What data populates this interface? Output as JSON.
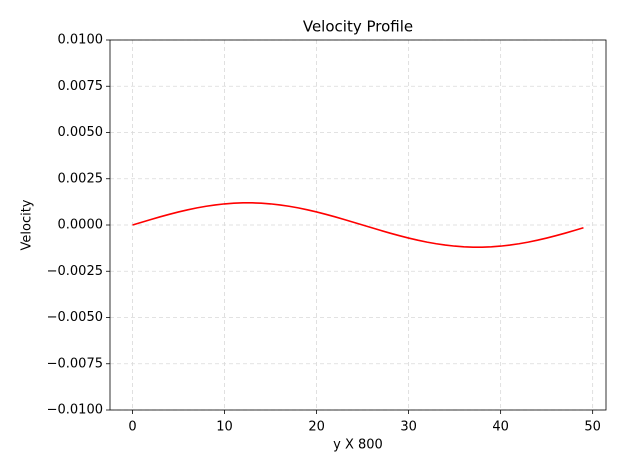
{
  "chart_data": {
    "type": "line",
    "title": "Velocity Profile",
    "x_label": "y X 800",
    "y_label": "Velocity",
    "x": [
      0,
      1,
      2,
      3,
      4,
      5,
      6,
      7,
      8,
      9,
      10,
      11,
      12,
      13,
      14,
      15,
      16,
      17,
      18,
      19,
      20,
      21,
      22,
      23,
      24,
      25,
      26,
      27,
      28,
      29,
      30,
      31,
      32,
      33,
      34,
      35,
      36,
      37,
      38,
      39,
      40,
      41,
      42,
      43,
      44,
      45,
      46,
      47,
      48,
      49
    ],
    "series": [
      {
        "name": "Velocity",
        "color": "#ff0000",
        "values": [
          0,
          0.00015,
          0.000298,
          0.000442,
          0.000578,
          0.000705,
          0.000821,
          0.000925,
          0.001013,
          0.001086,
          0.001141,
          0.001179,
          0.001198,
          0.001198,
          0.001179,
          0.001141,
          0.001086,
          0.001013,
          0.000925,
          0.000821,
          0.000705,
          0.000578,
          0.000442,
          0.000298,
          0.00015,
          0,
          -0.00015,
          -0.000298,
          -0.000442,
          -0.000578,
          -0.000705,
          -0.000821,
          -0.000925,
          -0.001013,
          -0.001086,
          -0.001141,
          -0.001179,
          -0.001198,
          -0.001198,
          -0.001179,
          -0.001141,
          -0.001086,
          -0.001013,
          -0.000925,
          -0.000821,
          -0.000705,
          -0.000578,
          -0.000442,
          -0.000298,
          -0.00015
        ]
      }
    ],
    "xlim": [
      -2.45,
      51.45
    ],
    "ylim": [
      -0.01,
      0.01
    ],
    "xticks": [
      0,
      10,
      20,
      30,
      40,
      50
    ],
    "yticks": [
      {
        "value": -0.01,
        "label": "−0.0100"
      },
      {
        "value": -0.0075,
        "label": "−0.0075"
      },
      {
        "value": -0.005,
        "label": "−0.0050"
      },
      {
        "value": -0.0025,
        "label": "−0.0025"
      },
      {
        "value": 0,
        "label": "0.0000"
      },
      {
        "value": 0.0025,
        "label": "0.0025"
      },
      {
        "value": 0.005,
        "label": "0.0050"
      },
      {
        "value": 0.0075,
        "label": "0.0075"
      },
      {
        "value": 0.01,
        "label": "0.0100"
      }
    ],
    "grid": true
  }
}
